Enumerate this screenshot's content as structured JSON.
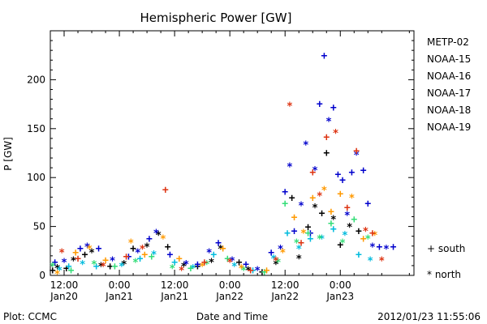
{
  "chart_data": {
    "type": "scatter",
    "title": "Hemispheric Power [GW]",
    "ylabel": "P [GW]",
    "xlabel": "Date and Time",
    "ylim": [
      0,
      250
    ],
    "y_ticks": [
      0,
      50,
      100,
      150,
      200
    ],
    "x_range": [
      "2012-01-20 09:00",
      "2012-01-23 16:00"
    ],
    "x_ticks": [
      {
        "t": "2012-01-20 12:00",
        "line1": "12:00",
        "line2": "Jan20"
      },
      {
        "t": "2012-01-21 00:00",
        "line1": "0:00",
        "line2": "Jan21"
      },
      {
        "t": "2012-01-21 12:00",
        "line1": "12:00",
        "line2": "Jan21"
      },
      {
        "t": "2012-01-22 00:00",
        "line1": "0:00",
        "line2": "Jan22"
      },
      {
        "t": "2012-01-22 12:00",
        "line1": "12:00",
        "line2": "Jan22"
      },
      {
        "t": "2012-01-23 00:00",
        "line1": "0:00",
        "line2": "Jan23"
      }
    ],
    "legend_placement": "right",
    "marker_legend": [
      {
        "symbol": "+",
        "label": "south"
      },
      {
        "symbol": "*",
        "label": "north"
      }
    ],
    "series": [
      {
        "name": "METP-02",
        "color": "#000000",
        "points": [
          [
            "2012-01-20 09:30",
            6,
            "+"
          ],
          [
            "2012-01-20 10:30",
            10,
            "*"
          ],
          [
            "2012-01-20 12:30",
            8,
            "+"
          ],
          [
            "2012-01-20 14:00",
            18,
            "*"
          ],
          [
            "2012-01-20 16:30",
            22,
            "+"
          ],
          [
            "2012-01-20 18:00",
            26,
            "*"
          ],
          [
            "2012-01-20 20:00",
            12,
            "*"
          ],
          [
            "2012-01-20 22:00",
            10,
            "+"
          ],
          [
            "2012-01-21 01:00",
            14,
            "*"
          ],
          [
            "2012-01-21 03:00",
            28,
            "+"
          ],
          [
            "2012-01-21 06:00",
            32,
            "*"
          ],
          [
            "2012-01-21 08:30",
            44,
            "*"
          ],
          [
            "2012-01-21 10:30",
            30,
            "+"
          ],
          [
            "2012-01-21 14:00",
            12,
            "*"
          ],
          [
            "2012-01-21 17:00",
            10,
            "+"
          ],
          [
            "2012-01-21 20:00",
            16,
            "*"
          ],
          [
            "2012-01-21 22:00",
            30,
            "*"
          ],
          [
            "2012-01-22 02:00",
            14,
            "+"
          ],
          [
            "2012-01-22 04:00",
            8,
            "*"
          ],
          [
            "2012-01-22 07:00",
            4,
            "+"
          ],
          [
            "2012-01-22 10:00",
            14,
            "*"
          ],
          [
            "2012-01-22 13:30",
            80,
            "+"
          ],
          [
            "2012-01-22 15:00",
            20,
            "*"
          ],
          [
            "2012-01-22 17:00",
            50,
            "+"
          ],
          [
            "2012-01-22 18:30",
            72,
            "*"
          ],
          [
            "2012-01-22 20:00",
            64,
            "+"
          ],
          [
            "2012-01-22 21:00",
            126,
            "+"
          ],
          [
            "2012-01-22 22:30",
            60,
            "*"
          ],
          [
            "2012-01-23 00:00",
            32,
            "+"
          ],
          [
            "2012-01-23 02:00",
            52,
            "*"
          ],
          [
            "2012-01-23 04:00",
            46,
            "+"
          ]
        ]
      },
      {
        "name": "NOAA-15",
        "color": "#0000cc",
        "points": [
          [
            "2012-01-20 10:00",
            14,
            "+"
          ],
          [
            "2012-01-20 12:00",
            16,
            "*"
          ],
          [
            "2012-01-20 15:30",
            28,
            "+"
          ],
          [
            "2012-01-20 17:00",
            32,
            "*"
          ],
          [
            "2012-01-20 19:30",
            28,
            "+"
          ],
          [
            "2012-01-20 22:30",
            18,
            "*"
          ],
          [
            "2012-01-21 02:00",
            20,
            "+"
          ],
          [
            "2012-01-21 04:00",
            26,
            "*"
          ],
          [
            "2012-01-21 06:30",
            38,
            "+"
          ],
          [
            "2012-01-21 08:00",
            46,
            "*"
          ],
          [
            "2012-01-21 11:00",
            22,
            "+"
          ],
          [
            "2012-01-21 14:30",
            14,
            "*"
          ],
          [
            "2012-01-21 17:00",
            12,
            "+"
          ],
          [
            "2012-01-21 19:30",
            26,
            "*"
          ],
          [
            "2012-01-21 21:30",
            34,
            "+"
          ],
          [
            "2012-01-22 00:30",
            18,
            "*"
          ],
          [
            "2012-01-22 03:30",
            12,
            "+"
          ],
          [
            "2012-01-22 06:00",
            8,
            "*"
          ],
          [
            "2012-01-22 09:00",
            24,
            "+"
          ],
          [
            "2012-01-22 11:00",
            30,
            "*"
          ],
          [
            "2012-01-22 12:00",
            86,
            "+"
          ],
          [
            "2012-01-22 13:00",
            114,
            "*"
          ],
          [
            "2012-01-22 14:00",
            46,
            "+"
          ],
          [
            "2012-01-22 15:30",
            74,
            "*"
          ],
          [
            "2012-01-22 16:30",
            136,
            "*"
          ],
          [
            "2012-01-22 17:30",
            44,
            "+"
          ],
          [
            "2012-01-22 18:30",
            110,
            "*"
          ],
          [
            "2012-01-22 19:30",
            176,
            "+"
          ],
          [
            "2012-01-22 20:30",
            225,
            "+"
          ],
          [
            "2012-01-22 21:30",
            160,
            "*"
          ],
          [
            "2012-01-22 22:30",
            172,
            "+"
          ],
          [
            "2012-01-22 23:30",
            104,
            "+"
          ],
          [
            "2012-01-23 00:30",
            98,
            "+"
          ],
          [
            "2012-01-23 01:30",
            64,
            "*"
          ],
          [
            "2012-01-23 02:30",
            106,
            "+"
          ],
          [
            "2012-01-23 03:30",
            126,
            "*"
          ],
          [
            "2012-01-23 05:00",
            108,
            "+"
          ],
          [
            "2012-01-23 06:00",
            74,
            "+"
          ],
          [
            "2012-01-23 07:00",
            32,
            "*"
          ],
          [
            "2012-01-23 08:30",
            30,
            "+"
          ],
          [
            "2012-01-23 10:00",
            30,
            "*"
          ],
          [
            "2012-01-23 11:30",
            30,
            "+"
          ]
        ]
      },
      {
        "name": "NOAA-16",
        "color": "#00bbdd",
        "points": [
          [
            "2012-01-20 11:00",
            8,
            "*"
          ],
          [
            "2012-01-20 13:00",
            10,
            "+"
          ],
          [
            "2012-01-20 16:00",
            14,
            "*"
          ],
          [
            "2012-01-20 19:00",
            10,
            "+"
          ],
          [
            "2012-01-21 00:30",
            12,
            "*"
          ],
          [
            "2012-01-21 04:30",
            18,
            "+"
          ],
          [
            "2012-01-21 07:30",
            24,
            "*"
          ],
          [
            "2012-01-21 12:00",
            14,
            "+"
          ],
          [
            "2012-01-21 16:00",
            10,
            "*"
          ],
          [
            "2012-01-21 20:30",
            22,
            "+"
          ],
          [
            "2012-01-22 01:00",
            12,
            "*"
          ],
          [
            "2012-01-22 05:00",
            6,
            "+"
          ],
          [
            "2012-01-22 09:30",
            20,
            "*"
          ],
          [
            "2012-01-22 12:30",
            44,
            "+"
          ],
          [
            "2012-01-22 15:00",
            30,
            "*"
          ],
          [
            "2012-01-22 17:30",
            38,
            "+"
          ],
          [
            "2012-01-22 20:00",
            40,
            "*"
          ],
          [
            "2012-01-22 22:30",
            48,
            "+"
          ],
          [
            "2012-01-23 01:00",
            44,
            "*"
          ],
          [
            "2012-01-23 04:00",
            22,
            "+"
          ],
          [
            "2012-01-23 06:30",
            18,
            "*"
          ]
        ]
      },
      {
        "name": "NOAA-17",
        "color": "#33dd77",
        "points": [
          [
            "2012-01-20 09:30",
            12,
            "*"
          ],
          [
            "2012-01-20 13:30",
            6,
            "+"
          ],
          [
            "2012-01-20 18:30",
            14,
            "*"
          ],
          [
            "2012-01-20 23:00",
            10,
            "+"
          ],
          [
            "2012-01-21 03:30",
            16,
            "*"
          ],
          [
            "2012-01-21 07:00",
            20,
            "+"
          ],
          [
            "2012-01-21 11:30",
            10,
            "*"
          ],
          [
            "2012-01-21 15:30",
            8,
            "+"
          ],
          [
            "2012-01-21 19:00",
            14,
            "*"
          ],
          [
            "2012-01-21 23:30",
            18,
            "+"
          ],
          [
            "2012-01-22 03:00",
            8,
            "*"
          ],
          [
            "2012-01-22 07:30",
            4,
            "+"
          ],
          [
            "2012-01-22 10:30",
            16,
            "*"
          ],
          [
            "2012-01-22 12:00",
            74,
            "+"
          ],
          [
            "2012-01-22 14:30",
            36,
            "*"
          ],
          [
            "2012-01-22 17:00",
            44,
            "+"
          ],
          [
            "2012-01-22 19:30",
            40,
            "*"
          ],
          [
            "2012-01-22 22:00",
            54,
            "+"
          ],
          [
            "2012-01-23 00:30",
            36,
            "*"
          ],
          [
            "2012-01-23 03:00",
            58,
            "+"
          ],
          [
            "2012-01-23 06:00",
            40,
            "*"
          ]
        ]
      },
      {
        "name": "NOAA-18",
        "color": "#ff9900",
        "points": [
          [
            "2012-01-20 10:30",
            4,
            "*"
          ],
          [
            "2012-01-20 14:30",
            24,
            "+"
          ],
          [
            "2012-01-20 17:30",
            30,
            "*"
          ],
          [
            "2012-01-20 21:00",
            16,
            "+"
          ],
          [
            "2012-01-21 02:30",
            36,
            "*"
          ],
          [
            "2012-01-21 05:30",
            22,
            "+"
          ],
          [
            "2012-01-21 09:30",
            40,
            "*"
          ],
          [
            "2012-01-21 13:00",
            18,
            "+"
          ],
          [
            "2012-01-21 18:00",
            12,
            "*"
          ],
          [
            "2012-01-21 22:30",
            28,
            "+"
          ],
          [
            "2012-01-22 02:30",
            10,
            "*"
          ],
          [
            "2012-01-22 08:00",
            6,
            "+"
          ],
          [
            "2012-01-22 11:30",
            26,
            "*"
          ],
          [
            "2012-01-22 14:00",
            60,
            "+"
          ],
          [
            "2012-01-22 16:00",
            46,
            "*"
          ],
          [
            "2012-01-22 18:00",
            80,
            "+"
          ],
          [
            "2012-01-22 20:30",
            90,
            "*"
          ],
          [
            "2012-01-22 22:00",
            66,
            "+"
          ],
          [
            "2012-01-23 00:00",
            84,
            "+"
          ],
          [
            "2012-01-23 02:30",
            82,
            "*"
          ],
          [
            "2012-01-23 05:00",
            38,
            "+"
          ],
          [
            "2012-01-23 07:30",
            44,
            "*"
          ]
        ]
      },
      {
        "name": "NOAA-19",
        "color": "#dd3311",
        "points": [
          [
            "2012-01-20 11:30",
            26,
            "*"
          ],
          [
            "2012-01-20 15:00",
            18,
            "+"
          ],
          [
            "2012-01-20 20:30",
            12,
            "*"
          ],
          [
            "2012-01-21 01:30",
            20,
            "+"
          ],
          [
            "2012-01-21 05:00",
            30,
            "*"
          ],
          [
            "2012-01-21 10:00",
            88,
            "+"
          ],
          [
            "2012-01-21 13:30",
            8,
            "*"
          ],
          [
            "2012-01-21 18:30",
            14,
            "+"
          ],
          [
            "2012-01-22 00:00",
            16,
            "*"
          ],
          [
            "2012-01-22 04:30",
            6,
            "+"
          ],
          [
            "2012-01-22 10:00",
            18,
            "*"
          ],
          [
            "2012-01-22 13:00",
            176,
            "*"
          ],
          [
            "2012-01-22 15:30",
            34,
            "+"
          ],
          [
            "2012-01-22 18:00",
            106,
            "+"
          ],
          [
            "2012-01-22 19:30",
            84,
            "*"
          ],
          [
            "2012-01-22 21:00",
            142,
            "+"
          ],
          [
            "2012-01-22 23:00",
            148,
            "*"
          ],
          [
            "2012-01-23 01:30",
            70,
            "+"
          ],
          [
            "2012-01-23 03:30",
            128,
            "+"
          ],
          [
            "2012-01-23 05:30",
            48,
            "*"
          ],
          [
            "2012-01-23 07:00",
            44,
            "+"
          ],
          [
            "2012-01-23 09:00",
            18,
            "*"
          ]
        ]
      }
    ]
  },
  "footer": {
    "left": "Plot: CCMC",
    "right": "2012/01/23 11:55:06"
  }
}
